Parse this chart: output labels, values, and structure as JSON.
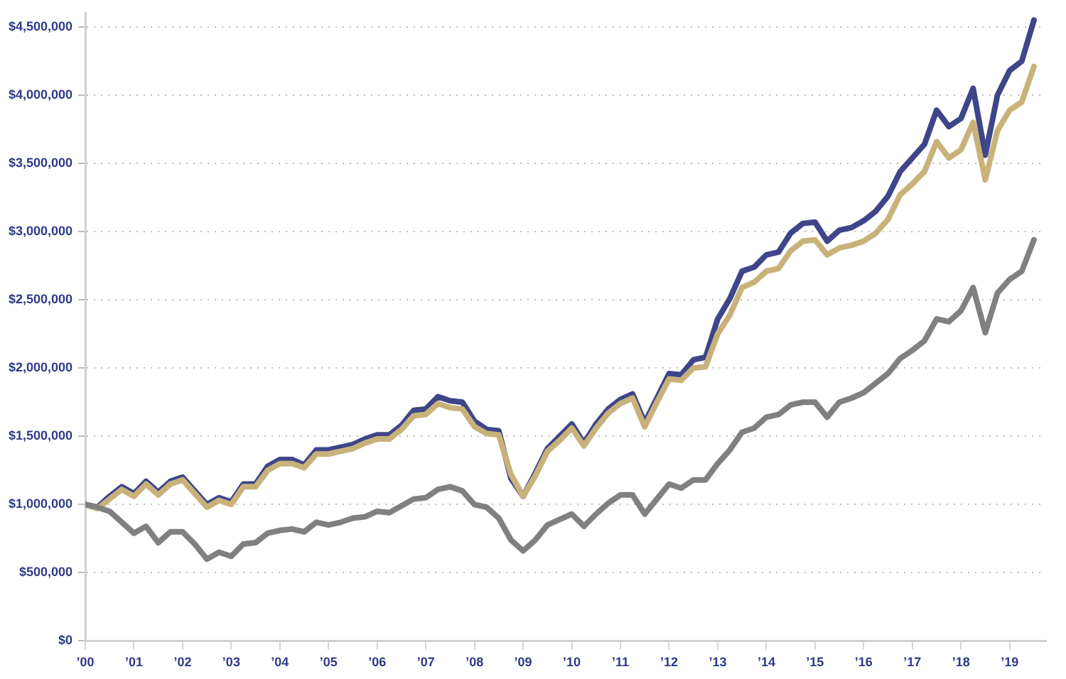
{
  "chart_data": {
    "type": "line",
    "x": [
      2000,
      2000.25,
      2000.5,
      2000.75,
      2001,
      2001.25,
      2001.5,
      2001.75,
      2002,
      2002.25,
      2002.5,
      2002.75,
      2003,
      2003.25,
      2003.5,
      2003.75,
      2004,
      2004.25,
      2004.5,
      2004.75,
      2005,
      2005.25,
      2005.5,
      2005.75,
      2006,
      2006.25,
      2006.5,
      2006.75,
      2007,
      2007.25,
      2007.5,
      2007.75,
      2008,
      2008.25,
      2008.5,
      2008.75,
      2009,
      2009.25,
      2009.5,
      2009.75,
      2010,
      2010.25,
      2010.5,
      2010.75,
      2011,
      2011.25,
      2011.5,
      2011.75,
      2012,
      2012.25,
      2012.5,
      2012.75,
      2013,
      2013.25,
      2013.5,
      2013.75,
      2014,
      2014.25,
      2014.5,
      2014.75,
      2015,
      2015.25,
      2015.5,
      2015.75,
      2016,
      2016.25,
      2016.5,
      2016.75,
      2017,
      2017.25,
      2017.5,
      2017.75,
      2018,
      2018.25,
      2018.5,
      2018.75,
      2019,
      2019.25,
      2019.5
    ],
    "series": [
      {
        "color": "#808080",
        "values": [
          1000000,
          980000,
          950000,
          870000,
          790000,
          840000,
          720000,
          800000,
          800000,
          710000,
          600000,
          650000,
          620000,
          710000,
          720000,
          790000,
          810000,
          820000,
          800000,
          870000,
          850000,
          870000,
          900000,
          910000,
          950000,
          940000,
          990000,
          1040000,
          1050000,
          1110000,
          1130000,
          1100000,
          1000000,
          980000,
          900000,
          740000,
          660000,
          740000,
          850000,
          890000,
          930000,
          840000,
          930000,
          1010000,
          1070000,
          1070000,
          930000,
          1040000,
          1150000,
          1120000,
          1180000,
          1180000,
          1300000,
          1400000,
          1530000,
          1560000,
          1640000,
          1660000,
          1730000,
          1750000,
          1750000,
          1640000,
          1750000,
          1780000,
          1820000,
          1890000,
          1960000,
          2070000,
          2130000,
          2200000,
          2360000,
          2340000,
          2420000,
          2590000,
          2260000,
          2550000,
          2650000,
          2710000,
          2940000
        ]
      },
      {
        "color": "#c9b27a",
        "values": [
          1000000,
          970000,
          1040000,
          1110000,
          1060000,
          1150000,
          1070000,
          1150000,
          1180000,
          1080000,
          980000,
          1030000,
          1000000,
          1130000,
          1130000,
          1250000,
          1300000,
          1300000,
          1270000,
          1370000,
          1370000,
          1390000,
          1410000,
          1450000,
          1480000,
          1480000,
          1550000,
          1650000,
          1660000,
          1740000,
          1710000,
          1700000,
          1570000,
          1520000,
          1510000,
          1220000,
          1060000,
          1210000,
          1390000,
          1470000,
          1560000,
          1430000,
          1560000,
          1670000,
          1740000,
          1780000,
          1570000,
          1750000,
          1920000,
          1910000,
          2000000,
          2010000,
          2250000,
          2390000,
          2590000,
          2630000,
          2710000,
          2730000,
          2860000,
          2930000,
          2940000,
          2830000,
          2880000,
          2900000,
          2930000,
          2990000,
          3090000,
          3270000,
          3350000,
          3440000,
          3660000,
          3540000,
          3600000,
          3800000,
          3380000,
          3740000,
          3890000,
          3950000,
          4210000
        ]
      },
      {
        "color": "#3f4589",
        "values": [
          1000000,
          980000,
          1060000,
          1130000,
          1080000,
          1170000,
          1090000,
          1170000,
          1200000,
          1100000,
          1000000,
          1050000,
          1020000,
          1150000,
          1150000,
          1280000,
          1330000,
          1330000,
          1290000,
          1400000,
          1400000,
          1420000,
          1440000,
          1480000,
          1510000,
          1510000,
          1580000,
          1690000,
          1700000,
          1790000,
          1760000,
          1750000,
          1610000,
          1550000,
          1540000,
          1190000,
          1060000,
          1230000,
          1410000,
          1500000,
          1590000,
          1450000,
          1590000,
          1700000,
          1770000,
          1810000,
          1600000,
          1780000,
          1960000,
          1950000,
          2060000,
          2080000,
          2360000,
          2510000,
          2710000,
          2740000,
          2830000,
          2850000,
          2990000,
          3060000,
          3070000,
          2930000,
          3010000,
          3030000,
          3080000,
          3150000,
          3260000,
          3440000,
          3540000,
          3640000,
          3890000,
          3770000,
          3830000,
          4050000,
          3560000,
          4000000,
          4180000,
          4250000,
          4550000
        ]
      }
    ],
    "xlim": [
      2000,
      2019.75
    ],
    "xticks": [
      {
        "value": 2000,
        "label": "’00"
      },
      {
        "value": 2001,
        "label": "’01"
      },
      {
        "value": 2002,
        "label": "’02"
      },
      {
        "value": 2003,
        "label": "’03"
      },
      {
        "value": 2004,
        "label": "’04"
      },
      {
        "value": 2005,
        "label": "’05"
      },
      {
        "value": 2006,
        "label": "’06"
      },
      {
        "value": 2007,
        "label": "’07"
      },
      {
        "value": 2008,
        "label": "’08"
      },
      {
        "value": 2009,
        "label": "’09"
      },
      {
        "value": 2010,
        "label": "’10"
      },
      {
        "value": 2011,
        "label": "’11"
      },
      {
        "value": 2012,
        "label": "’12"
      },
      {
        "value": 2013,
        "label": "’13"
      },
      {
        "value": 2014,
        "label": "’14"
      },
      {
        "value": 2015,
        "label": "’15"
      },
      {
        "value": 2016,
        "label": "’16"
      },
      {
        "value": 2017,
        "label": "’17"
      },
      {
        "value": 2018,
        "label": "’18"
      },
      {
        "value": 2019,
        "label": "’19"
      }
    ],
    "ylim": [
      0,
      4600000
    ],
    "yticks": [
      {
        "value": 0,
        "label": "$0"
      },
      {
        "value": 500000,
        "label": "$500,000"
      },
      {
        "value": 1000000,
        "label": "$1,000,000"
      },
      {
        "value": 1500000,
        "label": "$1,500,000"
      },
      {
        "value": 2000000,
        "label": "$2,000,000"
      },
      {
        "value": 2500000,
        "label": "$2,500,000"
      },
      {
        "value": 3000000,
        "label": "$3,000,000"
      },
      {
        "value": 3500000,
        "label": "$3,500,000"
      },
      {
        "value": 4000000,
        "label": "$4,000,000"
      },
      {
        "value": 4500000,
        "label": "$4,500,000"
      }
    ],
    "grid": "y",
    "legend": false,
    "marker": "none",
    "line_style": "solid"
  }
}
